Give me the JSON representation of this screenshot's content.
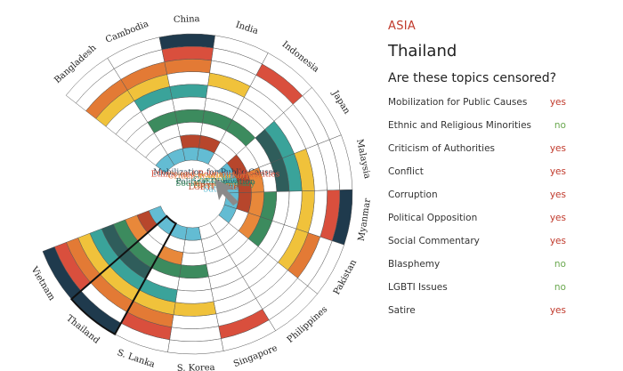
{
  "region": "ASIA",
  "country": "Thailand",
  "question": "Are these topics censored?",
  "answers": [
    {
      "topic": "Mobilization for Public Causes",
      "answer": "yes"
    },
    {
      "topic": "Ethnic and Religious Minorities",
      "answer": "no"
    },
    {
      "topic": "Criticism of Authorities",
      "answer": "yes"
    },
    {
      "topic": "Conflict",
      "answer": "yes"
    },
    {
      "topic": "Corruption",
      "answer": "yes"
    },
    {
      "topic": "Political Opposition",
      "answer": "yes"
    },
    {
      "topic": "Social Commentary",
      "answer": "yes"
    },
    {
      "topic": "Blasphemy",
      "answer": "no"
    },
    {
      "topic": "LGBTI Issues",
      "answer": "no"
    },
    {
      "topic": "Satire",
      "answer": "yes"
    }
  ],
  "colors": {
    "yes": "#c0392b",
    "no": "#6aa84f",
    "region": "#c0392b"
  },
  "chart_data": {
    "type": "heatmap",
    "selected_country": "Thailand",
    "center_icon": "cursor-arrow-icon",
    "topics": [
      {
        "name": "Mobilization for Public Causes",
        "color": "#1f3a4d"
      },
      {
        "name": "Ethnic and Religious Minorities",
        "color": "#d94f3d"
      },
      {
        "name": "Criticism of Authorities",
        "color": "#e37a35"
      },
      {
        "name": "Conflict",
        "color": "#f0c23b"
      },
      {
        "name": "Corruption",
        "color": "#3aa39a"
      },
      {
        "name": "Political Opposition",
        "color": "#2f5d5b"
      },
      {
        "name": "Social Commentary",
        "color": "#3c8b5e"
      },
      {
        "name": "Blasphemy",
        "color": "#e8883a"
      },
      {
        "name": "LGBTI Issues",
        "color": "#b7462c"
      },
      {
        "name": "Satire",
        "color": "#63bcd3"
      }
    ],
    "countries": [
      {
        "name": "Bangladesh",
        "censored": [
          0,
          0,
          1,
          1,
          0,
          0,
          0,
          0,
          0,
          1
        ]
      },
      {
        "name": "Cambodia",
        "censored": [
          0,
          0,
          1,
          1,
          1,
          0,
          1,
          0,
          0,
          1
        ]
      },
      {
        "name": "China",
        "censored": [
          1,
          1,
          1,
          0,
          1,
          0,
          1,
          0,
          1,
          1
        ]
      },
      {
        "name": "India",
        "censored": [
          0,
          0,
          0,
          1,
          0,
          0,
          1,
          0,
          1,
          1
        ]
      },
      {
        "name": "Indonesia",
        "censored": [
          0,
          1,
          0,
          0,
          0,
          0,
          1,
          0,
          0,
          0
        ]
      },
      {
        "name": "Japan",
        "censored": [
          0,
          0,
          0,
          0,
          1,
          1,
          0,
          0,
          1,
          1
        ]
      },
      {
        "name": "Malaysia",
        "censored": [
          0,
          0,
          0,
          1,
          1,
          1,
          0,
          1,
          1,
          1
        ]
      },
      {
        "name": "Myanmar",
        "censored": [
          1,
          1,
          0,
          1,
          0,
          0,
          1,
          1,
          1,
          1
        ]
      },
      {
        "name": "Pakistan",
        "censored": [
          0,
          0,
          1,
          1,
          0,
          0,
          1,
          1,
          0,
          1
        ]
      },
      {
        "name": "Philippines",
        "censored": [
          0,
          0,
          0,
          0,
          0,
          0,
          0,
          0,
          0,
          0
        ]
      },
      {
        "name": "Singapore",
        "censored": [
          0,
          1,
          0,
          0,
          0,
          0,
          0,
          0,
          0,
          0
        ]
      },
      {
        "name": "S. Korea",
        "censored": [
          0,
          0,
          0,
          1,
          0,
          0,
          1,
          0,
          0,
          1
        ]
      },
      {
        "name": "S. Lanka",
        "censored": [
          0,
          1,
          1,
          1,
          1,
          0,
          1,
          1,
          0,
          1
        ]
      },
      {
        "name": "Thailand",
        "censored": [
          1,
          0,
          1,
          1,
          1,
          1,
          1,
          0,
          0,
          1
        ]
      },
      {
        "name": "Vietnam",
        "censored": [
          1,
          1,
          1,
          1,
          1,
          1,
          1,
          1,
          1,
          1
        ]
      }
    ]
  }
}
